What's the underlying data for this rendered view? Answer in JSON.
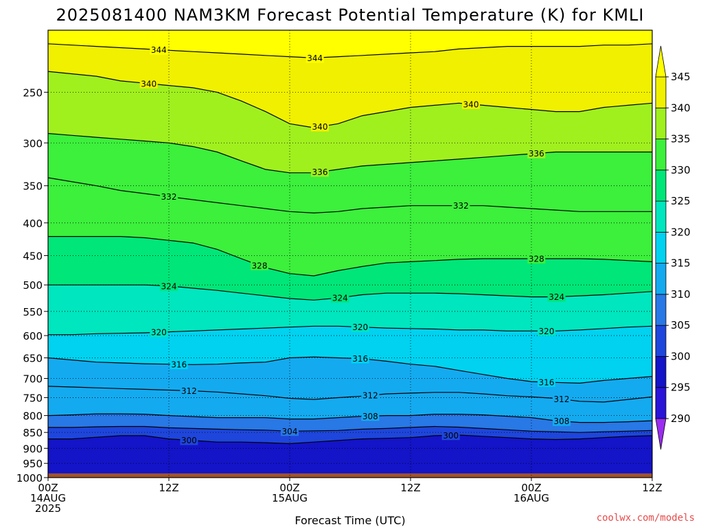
{
  "chart_data": {
    "type": "heatmap",
    "title": "2025081400 NAM3KM Forecast Potential Temperature (K) for KMLI",
    "xlabel": "Forecast Time (UTC)",
    "credit": "coolwx.com/models",
    "x_ticks": [
      {
        "hours": 0,
        "lines": [
          "00Z",
          "14AUG",
          "2025"
        ]
      },
      {
        "hours": 12,
        "lines": [
          "12Z"
        ]
      },
      {
        "hours": 24,
        "lines": [
          "00Z",
          "15AUG"
        ]
      },
      {
        "hours": 36,
        "lines": [
          "12Z"
        ]
      },
      {
        "hours": 48,
        "lines": [
          "00Z",
          "16AUG"
        ]
      },
      {
        "hours": 60,
        "lines": [
          "12Z"
        ]
      }
    ],
    "xlim_hours": [
      0,
      60
    ],
    "y_ticks": [
      250,
      300,
      350,
      400,
      450,
      500,
      550,
      600,
      650,
      700,
      750,
      800,
      850,
      900,
      950,
      1000
    ],
    "ylim_hPa": [
      200,
      1000
    ],
    "y_scale": "log",
    "grid": true,
    "colorbar": {
      "levels": [
        290,
        295,
        300,
        305,
        310,
        315,
        320,
        325,
        330,
        335,
        340,
        345
      ],
      "colors": [
        "#9b2cf0",
        "#2a14d8",
        "#1414c8",
        "#1e46dc",
        "#2878e6",
        "#14aaf0",
        "#00d2f0",
        "#00e6be",
        "#00e678",
        "#3cf03c",
        "#a0f01e",
        "#f0f000",
        "#ffff00"
      ]
    },
    "series": [
      {
        "name": "300",
        "label_at_hours": [
          14,
          40
        ],
        "values": [
          870,
          870,
          865,
          860,
          860,
          870,
          875,
          880,
          880,
          882,
          885,
          880,
          875,
          870,
          868,
          866,
          860,
          858,
          862,
          866,
          870,
          872,
          870,
          866,
          862,
          860
        ]
      },
      {
        "name": "304",
        "label_at_hours": [
          24
        ],
        "values": [
          835,
          835,
          833,
          832,
          832,
          836,
          838,
          840,
          842,
          843,
          846,
          845,
          844,
          840,
          838,
          835,
          832,
          834,
          838,
          842,
          846,
          848,
          850,
          848,
          846,
          844
        ]
      },
      {
        "name": "308",
        "label_at_hours": [
          32,
          51
        ],
        "values": [
          800,
          798,
          795,
          795,
          796,
          800,
          803,
          806,
          806,
          806,
          810,
          810,
          806,
          802,
          800,
          800,
          796,
          796,
          798,
          802,
          806,
          815,
          820,
          820,
          818,
          815
        ]
      },
      {
        "name": "312",
        "label_at_hours": [
          14,
          32,
          51
        ],
        "values": [
          720,
          722,
          724,
          726,
          728,
          730,
          732,
          735,
          740,
          745,
          752,
          755,
          750,
          746,
          740,
          738,
          736,
          736,
          740,
          745,
          748,
          752,
          760,
          762,
          755,
          748
        ]
      },
      {
        "name": "316",
        "label_at_hours": [
          13,
          31,
          49.5
        ],
        "values": [
          650,
          655,
          660,
          662,
          664,
          665,
          666,
          665,
          662,
          660,
          650,
          648,
          650,
          652,
          658,
          665,
          670,
          680,
          690,
          700,
          708,
          710,
          712,
          705,
          700,
          695
        ]
      },
      {
        "name": "320",
        "label_at_hours": [
          11,
          31,
          49.5
        ],
        "values": [
          598,
          598,
          596,
          595,
          594,
          592,
          590,
          588,
          586,
          584,
          582,
          580,
          580,
          582,
          584,
          585,
          586,
          588,
          588,
          590,
          590,
          590,
          588,
          585,
          582,
          580
        ]
      },
      {
        "name": "324",
        "label_at_hours": [
          12,
          29,
          50.5
        ],
        "values": [
          500,
          500,
          500,
          500,
          500,
          502,
          506,
          510,
          515,
          520,
          525,
          528,
          524,
          518,
          515,
          515,
          515,
          516,
          518,
          520,
          522,
          522,
          520,
          518,
          515,
          512
        ]
      },
      {
        "name": "328",
        "label_at_hours": [
          21,
          48.5
        ],
        "values": [
          420,
          420,
          420,
          420,
          422,
          426,
          430,
          440,
          455,
          470,
          480,
          484,
          475,
          468,
          462,
          460,
          458,
          456,
          455,
          455,
          455,
          455,
          455,
          456,
          458,
          460
        ]
      },
      {
        "name": "332",
        "label_at_hours": [
          12,
          41
        ],
        "values": [
          340,
          345,
          350,
          356,
          360,
          364,
          368,
          372,
          376,
          380,
          384,
          386,
          384,
          380,
          378,
          376,
          376,
          376,
          376,
          378,
          380,
          382,
          384,
          384,
          384,
          384
        ]
      },
      {
        "name": "336",
        "label_at_hours": [
          27,
          48.5
        ],
        "values": [
          290,
          292,
          294,
          296,
          298,
          300,
          304,
          310,
          320,
          330,
          334,
          334,
          330,
          326,
          324,
          322,
          320,
          318,
          316,
          314,
          312,
          310,
          310,
          310,
          310,
          310
        ]
      },
      {
        "name": "340",
        "label_at_hours": [
          10,
          27,
          42
        ],
        "values": [
          232,
          234,
          236,
          240,
          242,
          244,
          246,
          250,
          258,
          268,
          280,
          284,
          280,
          272,
          268,
          264,
          262,
          260,
          262,
          264,
          266,
          268,
          268,
          264,
          262,
          260
        ]
      },
      {
        "name": "344",
        "label_at_hours": [
          11,
          26.5
        ],
        "values": [
          210,
          211,
          212,
          213,
          214,
          215,
          216,
          217,
          218,
          219,
          220,
          221,
          220,
          219,
          218,
          217,
          216,
          214,
          213,
          212,
          212,
          212,
          212,
          211,
          211,
          210
        ]
      }
    ]
  }
}
